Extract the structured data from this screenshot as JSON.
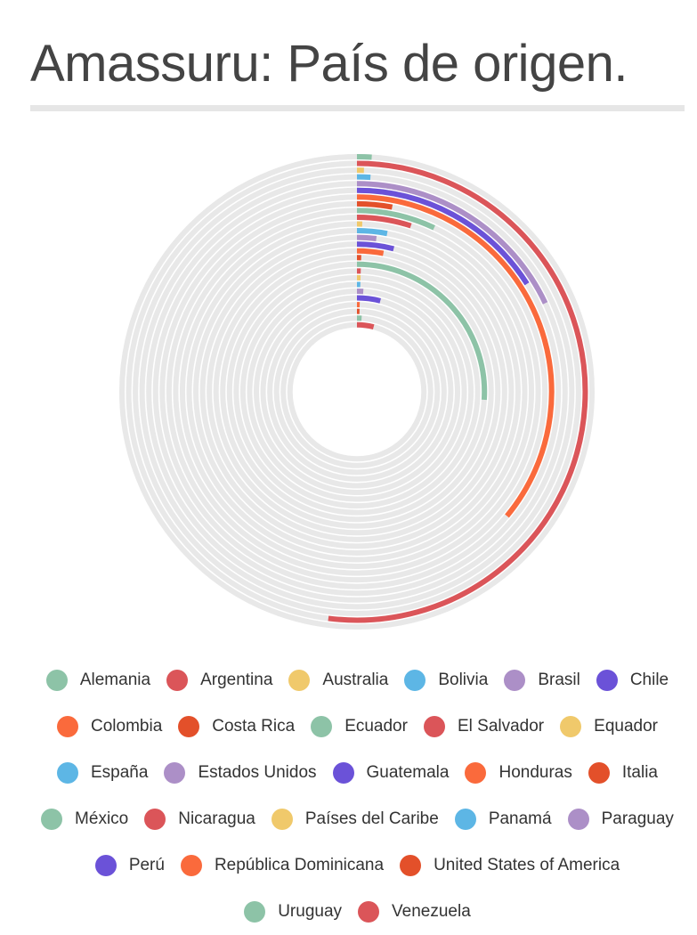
{
  "header": {
    "title": "Amassuru: País de origen."
  },
  "chart_data": {
    "type": "radial-bar",
    "max_value": 100,
    "series": [
      {
        "name": "Alemania",
        "value": 1,
        "color": "#8dc3a7"
      },
      {
        "name": "Argentina",
        "value": 52,
        "color": "#db5559"
      },
      {
        "name": "Australia",
        "value": 0.5,
        "color": "#f0c96b"
      },
      {
        "name": "Bolivia",
        "value": 1,
        "color": "#5db6e5"
      },
      {
        "name": "Brasil",
        "value": 18,
        "color": "#ac8fc7"
      },
      {
        "name": "Chile",
        "value": 16,
        "color": "#6b52d8"
      },
      {
        "name": "Colombia",
        "value": 36,
        "color": "#fa6a3c"
      },
      {
        "name": "Costa Rica",
        "value": 3,
        "color": "#e3502a"
      },
      {
        "name": "Ecuador",
        "value": 7,
        "color": "#8dc3a7"
      },
      {
        "name": "El Salvador",
        "value": 5,
        "color": "#db5559"
      },
      {
        "name": "Equador",
        "value": 0.5,
        "color": "#f0c96b"
      },
      {
        "name": "España",
        "value": 3,
        "color": "#5db6e5"
      },
      {
        "name": "Estados Unidos",
        "value": 2,
        "color": "#ac8fc7"
      },
      {
        "name": "Guatemala",
        "value": 4,
        "color": "#6b52d8"
      },
      {
        "name": "Honduras",
        "value": 3,
        "color": "#fa6a3c"
      },
      {
        "name": "Italia",
        "value": 0.5,
        "color": "#e3502a"
      },
      {
        "name": "México",
        "value": 26,
        "color": "#8dc3a7"
      },
      {
        "name": "Nicaragua",
        "value": 0.5,
        "color": "#db5559"
      },
      {
        "name": "Países del Caribe",
        "value": 0.5,
        "color": "#f0c96b"
      },
      {
        "name": "Panamá",
        "value": 0.5,
        "color": "#5db6e5"
      },
      {
        "name": "Paraguay",
        "value": 1,
        "color": "#ac8fc7"
      },
      {
        "name": "Perú",
        "value": 4,
        "color": "#6b52d8"
      },
      {
        "name": "República Dominicana",
        "value": 0.5,
        "color": "#fa6a3c"
      },
      {
        "name": "United States of America",
        "value": 0.5,
        "color": "#e3502a"
      },
      {
        "name": "Uruguay",
        "value": 1,
        "color": "#8dc3a7"
      },
      {
        "name": "Venezuela",
        "value": 4,
        "color": "#db5559"
      }
    ]
  },
  "legend_rows": [
    [
      "Alemania",
      "Argentina",
      "Australia",
      "Bolivia",
      "Brasil",
      "Chile"
    ],
    [
      "Colombia",
      "Costa Rica",
      "Ecuador",
      "El Salvador",
      "Equador"
    ],
    [
      "España",
      "Estados Unidos",
      "Guatemala",
      "Honduras",
      "Italia"
    ],
    [
      "México",
      "Nicaragua",
      "Países del Caribe",
      "Panamá",
      "Paraguay"
    ],
    [
      "Perú",
      "República Dominicana",
      "United States of America"
    ],
    [
      "Uruguay",
      "Venezuela"
    ]
  ],
  "colors": {
    "track": "#e8e8e8",
    "title": "#444444",
    "legend_text": "#333333"
  }
}
